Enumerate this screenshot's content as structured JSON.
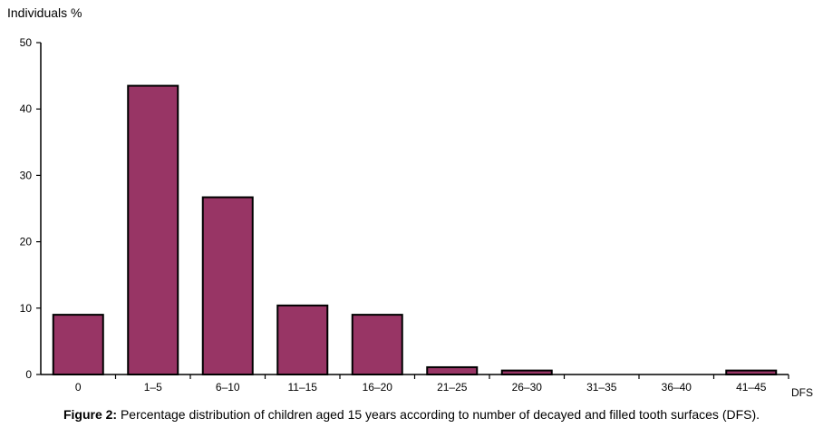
{
  "chart_data": {
    "type": "bar",
    "ylabel": "Individuals %",
    "xlabel": "DFS",
    "ylim": [
      0,
      50
    ],
    "yticks": [
      "0",
      "10",
      "20",
      "30",
      "40",
      "50"
    ],
    "categories": [
      "0",
      "1–5",
      "6–10",
      "11–15",
      "16–20",
      "21–25",
      "26–30",
      "31–35",
      "36–40",
      "41–45"
    ],
    "values": [
      9.0,
      43.5,
      26.7,
      10.4,
      9.0,
      1.1,
      0.6,
      0,
      0,
      0.6
    ],
    "bar_color": "#983565",
    "grid": false
  },
  "caption": {
    "label": "Figure 2:",
    "text": "Percentage distribution of children aged 15 years according to number of decayed and filled tooth surfaces (DFS)."
  }
}
